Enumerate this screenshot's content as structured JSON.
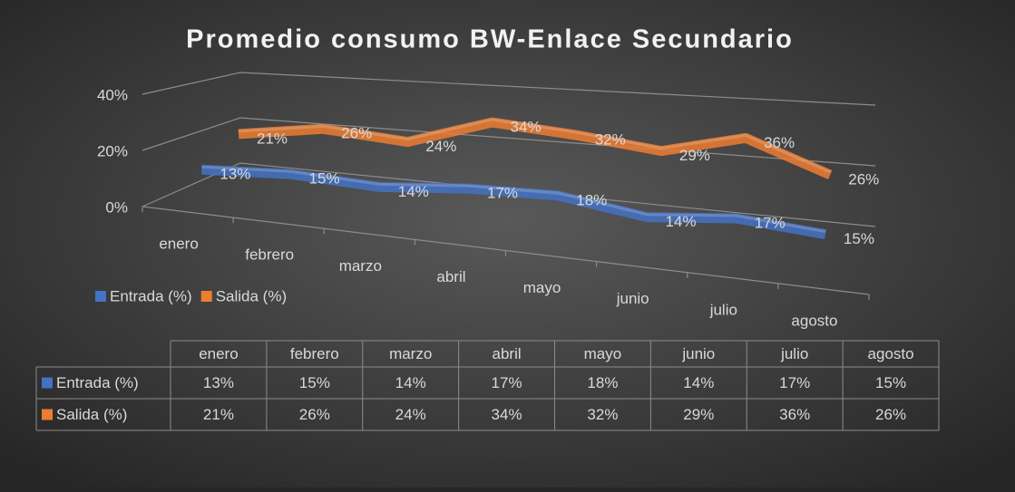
{
  "chart_data": {
    "type": "line3d",
    "title": "Promedio consumo BW-Enlace Secundario",
    "categories": [
      "enero",
      "febrero",
      "marzo",
      "abril",
      "mayo",
      "junio",
      "julio",
      "agosto"
    ],
    "series": [
      {
        "name": "Entrada (%)",
        "color": "#4472c4",
        "values": [
          13,
          15,
          14,
          17,
          18,
          14,
          17,
          15
        ],
        "value_labels": [
          "13%",
          "15%",
          "14%",
          "17%",
          "18%",
          "14%",
          "17%",
          "15%"
        ]
      },
      {
        "name": "Salida (%)",
        "color": "#ed7d31",
        "values": [
          21,
          26,
          24,
          34,
          32,
          29,
          36,
          26
        ],
        "value_labels": [
          "21%",
          "26%",
          "24%",
          "34%",
          "32%",
          "29%",
          "36%",
          "26%"
        ]
      }
    ],
    "ylim": [
      0,
      40
    ],
    "yticks": [
      {
        "value": 0,
        "label": "0%"
      },
      {
        "value": 20,
        "label": "20%"
      },
      {
        "value": 40,
        "label": "40%"
      }
    ],
    "grid": true,
    "legend": "bottom-left",
    "data_table": true
  }
}
